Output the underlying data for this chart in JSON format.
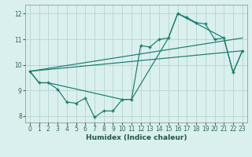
{
  "xlabel": "Humidex (Indice chaleur)",
  "background_color": "#daf0ee",
  "grid_color": "#b8d8d4",
  "line_color": "#1a7a6e",
  "xlim": [
    -0.5,
    23.5
  ],
  "ylim": [
    7.75,
    12.35
  ],
  "xticks": [
    0,
    1,
    2,
    3,
    4,
    5,
    6,
    7,
    8,
    9,
    10,
    11,
    12,
    13,
    14,
    15,
    16,
    17,
    18,
    19,
    20,
    21,
    22,
    23
  ],
  "yticks": [
    8,
    9,
    10,
    11,
    12
  ],
  "line1_x": [
    0,
    1,
    2,
    3,
    4,
    5,
    6,
    7,
    8,
    9,
    10,
    11,
    12,
    13,
    14,
    15,
    16,
    17,
    18,
    19,
    20,
    21,
    22,
    23
  ],
  "line1_y": [
    9.75,
    9.3,
    9.3,
    9.05,
    8.55,
    8.5,
    8.7,
    7.95,
    8.2,
    8.2,
    8.65,
    8.65,
    10.75,
    10.7,
    11.0,
    11.05,
    12.0,
    11.85,
    11.65,
    11.6,
    11.0,
    11.05,
    9.7,
    10.55
  ],
  "line2_x": [
    0,
    1,
    2,
    10,
    11,
    15,
    16,
    21,
    22,
    23
  ],
  "line2_y": [
    9.75,
    9.3,
    9.3,
    8.65,
    8.65,
    11.05,
    12.0,
    11.05,
    9.7,
    10.55
  ],
  "line3_x": [
    0,
    23
  ],
  "line3_y": [
    9.75,
    10.55
  ],
  "line4_x": [
    0,
    23
  ],
  "line4_y": [
    9.75,
    11.05
  ]
}
